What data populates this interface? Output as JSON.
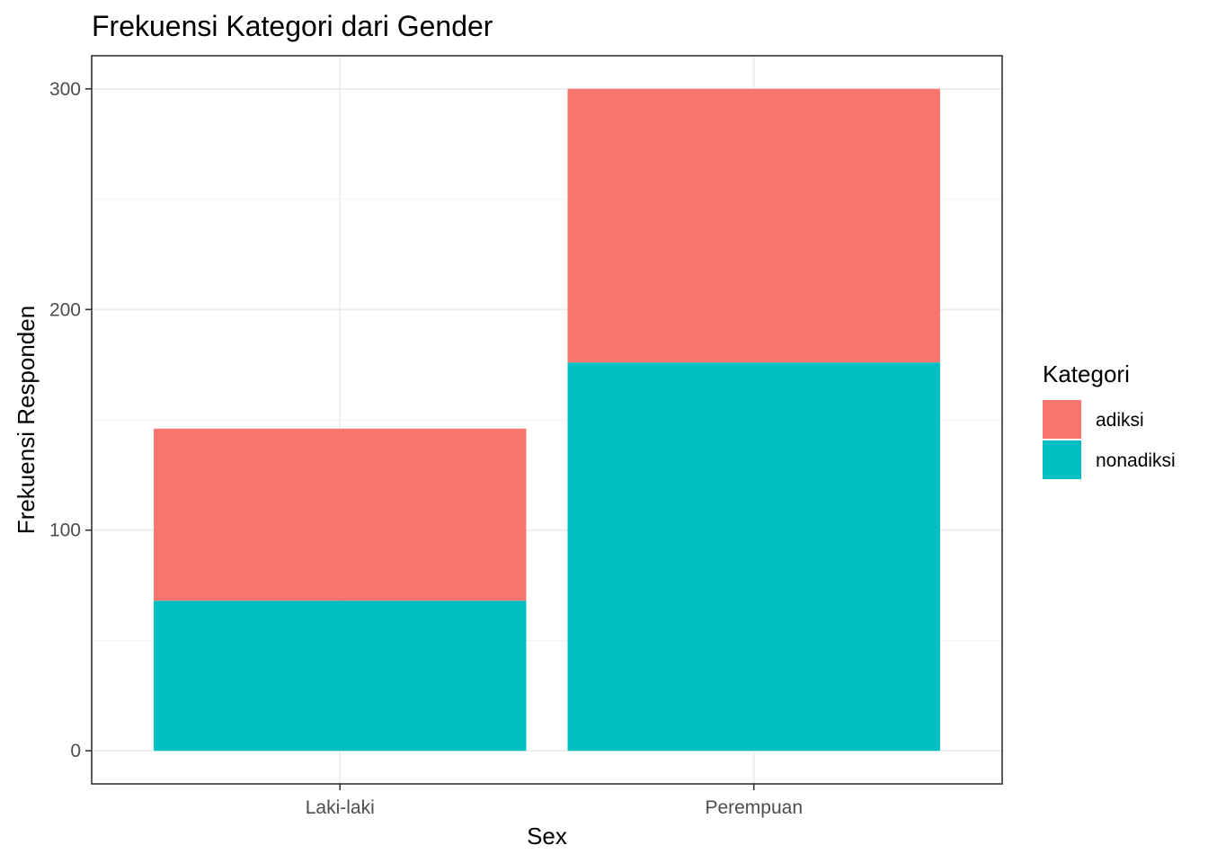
{
  "chart_data": {
    "type": "bar",
    "stacked": true,
    "title": "Frekuensi Kategori dari Gender",
    "xlabel": "Sex",
    "ylabel": "Frekuensi Responden",
    "categories": [
      "Laki-laki",
      "Perempuan"
    ],
    "series": [
      {
        "name": "nonadiksi",
        "values": [
          68,
          176
        ],
        "color": "#00BFC4"
      },
      {
        "name": "adiksi",
        "values": [
          78,
          124
        ],
        "color": "#F8766D"
      }
    ],
    "ylim": [
      -15,
      315
    ],
    "yticks": [
      0,
      100,
      200,
      300
    ],
    "grid": true,
    "legend": {
      "title": "Kategori",
      "position": "right",
      "entries": [
        {
          "label": "adiksi",
          "color": "#F8766D"
        },
        {
          "label": "nonadiksi",
          "color": "#00BFC4"
        }
      ]
    }
  }
}
